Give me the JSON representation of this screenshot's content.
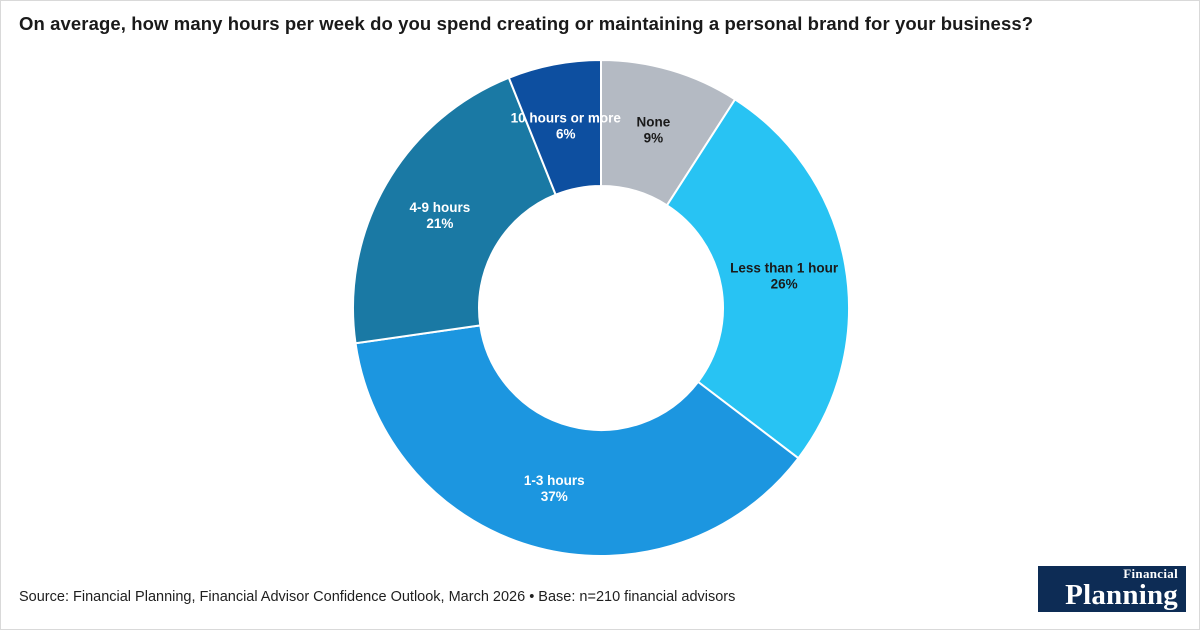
{
  "title": "On average, how many hours per week do you spend creating or maintaining a personal brand for your business?",
  "source": "Source: Financial Planning, Financial Advisor Confidence Outlook, March 2026 • Base: n=210 financial advisors",
  "logo": {
    "line1": "Financial",
    "line2": "Planning",
    "bg_color": "#0d2c55",
    "text_color": "#ffffff"
  },
  "chart_data": {
    "type": "pie",
    "donut": true,
    "title": "On average, how many hours per week do you spend creating or maintaining a personal brand for your business?",
    "start_angle_deg": 0,
    "direction": "clockwise",
    "legend_position": "none",
    "slices": [
      {
        "label": "None",
        "value": 9,
        "color": "#b4bac3",
        "label_color": "#1a1a1a"
      },
      {
        "label": "Less than 1 hour",
        "value": 26,
        "color": "#28c3f3",
        "label_color": "#1a1a1a"
      },
      {
        "label": "1-3 hours",
        "value": 37,
        "color": "#1c96e0",
        "label_color": "#ffffff"
      },
      {
        "label": "4-9 hours",
        "value": 21,
        "color": "#1a79a4",
        "label_color": "#ffffff"
      },
      {
        "label": "10 hours or more",
        "value": 6,
        "color": "#0d4fa0",
        "label_color": "#ffffff"
      }
    ]
  }
}
